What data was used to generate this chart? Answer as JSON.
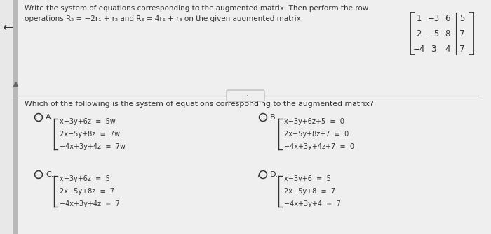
{
  "bg_color": "#e8e8e8",
  "white_area_color": "#f2f2f2",
  "sidebar_color": "#b8b8b8",
  "text_color": "#333333",
  "header_line1": "Write the system of equations corresponding to the augmented matrix. Then perform the row",
  "header_line2": "operations R₂ = −2r₁ + r₂ and R₃ = 4r₁ + r₃ on the given augmented matrix.",
  "matrix_rows": [
    [
      "1",
      "−3",
      "6",
      "5"
    ],
    [
      "2",
      "−5",
      "8",
      "7"
    ],
    [
      "−4",
      "3",
      "4",
      "7"
    ]
  ],
  "question": "Which of the following is the system of equations corresponding to the augmented matrix?",
  "dots": "···",
  "options": {
    "A": {
      "lines": [
        "x−3y+6z  ≡  5w",
        "2x−5y+8z  ≡  7w",
        "−4x+3y+4z  ≡  7w"
      ]
    },
    "B": {
      "lines": [
        "x−3y+6z+5  ≡  0",
        "2x−5y+8z+7  ≡  0",
        "−4x+3y+4z+7  ≡  0"
      ]
    },
    "C": {
      "lines": [
        "x−3y+6z  ≡  5",
        "2x−5y+8z  ≡  7",
        "−4x+3y+4z  ≡  7"
      ]
    },
    "D": {
      "lines": [
        "x−3y+6  ≡  5",
        "2x−5y+8  ≡  7",
        "−4x+3y+4  ≡  7"
      ]
    }
  }
}
